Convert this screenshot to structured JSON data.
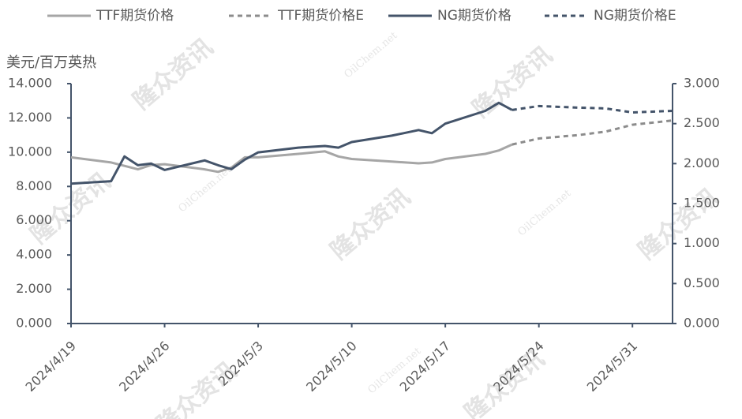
{
  "chart_data": {
    "type": "line",
    "y_label": "美元/百万英热",
    "watermark": [
      "隆众资讯",
      "OilChem.net"
    ],
    "x": [
      "2024/4/19",
      "2024/4/22",
      "2024/4/23",
      "2024/4/24",
      "2024/4/25",
      "2024/4/26",
      "2024/4/29",
      "2024/4/30",
      "2024/5/1",
      "2024/5/2",
      "2024/5/3",
      "2024/5/6",
      "2024/5/8",
      "2024/5/9",
      "2024/5/10",
      "2024/5/13",
      "2024/5/15",
      "2024/5/16",
      "2024/5/17",
      "2024/5/20",
      "2024/5/21",
      "2024/5/22",
      "2024/5/24",
      "2024/5/27",
      "2024/5/29",
      "2024/5/31",
      "2024/6/3"
    ],
    "xlim": [
      "2024/4/19",
      "2024/6/3"
    ],
    "xticks": [
      "2024/4/19",
      "2024/4/26",
      "2024/5/3",
      "2024/5/10",
      "2024/5/17",
      "2024/5/24",
      "2024/5/31"
    ],
    "ylim": [
      0,
      14
    ],
    "yticks": [
      {
        "value": 0,
        "label": "0.000"
      },
      {
        "value": 2,
        "label": "2.000"
      },
      {
        "value": 4,
        "label": "4.000"
      },
      {
        "value": 6,
        "label": "6.000"
      },
      {
        "value": 8,
        "label": "8.000"
      },
      {
        "value": 10,
        "label": "10.000"
      },
      {
        "value": 12,
        "label": "12.000"
      },
      {
        "value": 14,
        "label": "14.000"
      }
    ],
    "y2lim": [
      0,
      3
    ],
    "y2ticks": [
      {
        "value": 0,
        "label": "0.000"
      },
      {
        "value": 0.5,
        "label": "0.500"
      },
      {
        "value": 1,
        "label": "1.000"
      },
      {
        "value": 1.5,
        "label": "1.500"
      },
      {
        "value": 2,
        "label": "2.000"
      },
      {
        "value": 2.5,
        "label": "2.500"
      },
      {
        "value": 3,
        "label": "3.000"
      }
    ],
    "series": [
      {
        "name": "TTF期货价格",
        "color": "#a6a6a6",
        "line_style": "solid",
        "values": [
          9.7,
          9.4,
          9.2,
          9.0,
          9.25,
          9.3,
          9.0,
          8.85,
          9.1,
          9.7,
          9.7,
          9.9,
          10.05,
          9.75,
          9.6,
          9.45,
          9.35,
          9.4,
          9.6,
          9.9,
          10.1,
          10.45,
          null,
          null,
          null,
          null,
          null
        ]
      },
      {
        "name": "TTF期货价格E",
        "color": "#8c8c8c",
        "line_style": "dashed",
        "values": [
          null,
          null,
          null,
          null,
          null,
          null,
          null,
          null,
          null,
          null,
          null,
          null,
          null,
          null,
          null,
          null,
          null,
          null,
          null,
          null,
          null,
          10.45,
          10.8,
          11.0,
          11.2,
          11.6,
          11.85
        ]
      },
      {
        "name": "NG期货价格",
        "color": "#44546a",
        "line_style": "solid",
        "axis": "y2",
        "values": [
          1.75,
          1.78,
          2.09,
          1.98,
          2.0,
          1.92,
          2.04,
          1.98,
          1.93,
          2.05,
          2.14,
          2.2,
          2.22,
          2.2,
          2.27,
          2.35,
          2.42,
          2.38,
          2.5,
          2.66,
          2.76,
          2.67,
          null,
          null,
          null,
          null,
          null
        ]
      },
      {
        "name": "NG期货价格E",
        "color": "#44546a",
        "line_style": "dashed",
        "axis": "y2",
        "values": [
          null,
          null,
          null,
          null,
          null,
          null,
          null,
          null,
          null,
          null,
          null,
          null,
          null,
          null,
          null,
          null,
          null,
          null,
          null,
          null,
          null,
          2.67,
          2.72,
          2.7,
          2.69,
          2.64,
          2.66
        ]
      }
    ]
  }
}
